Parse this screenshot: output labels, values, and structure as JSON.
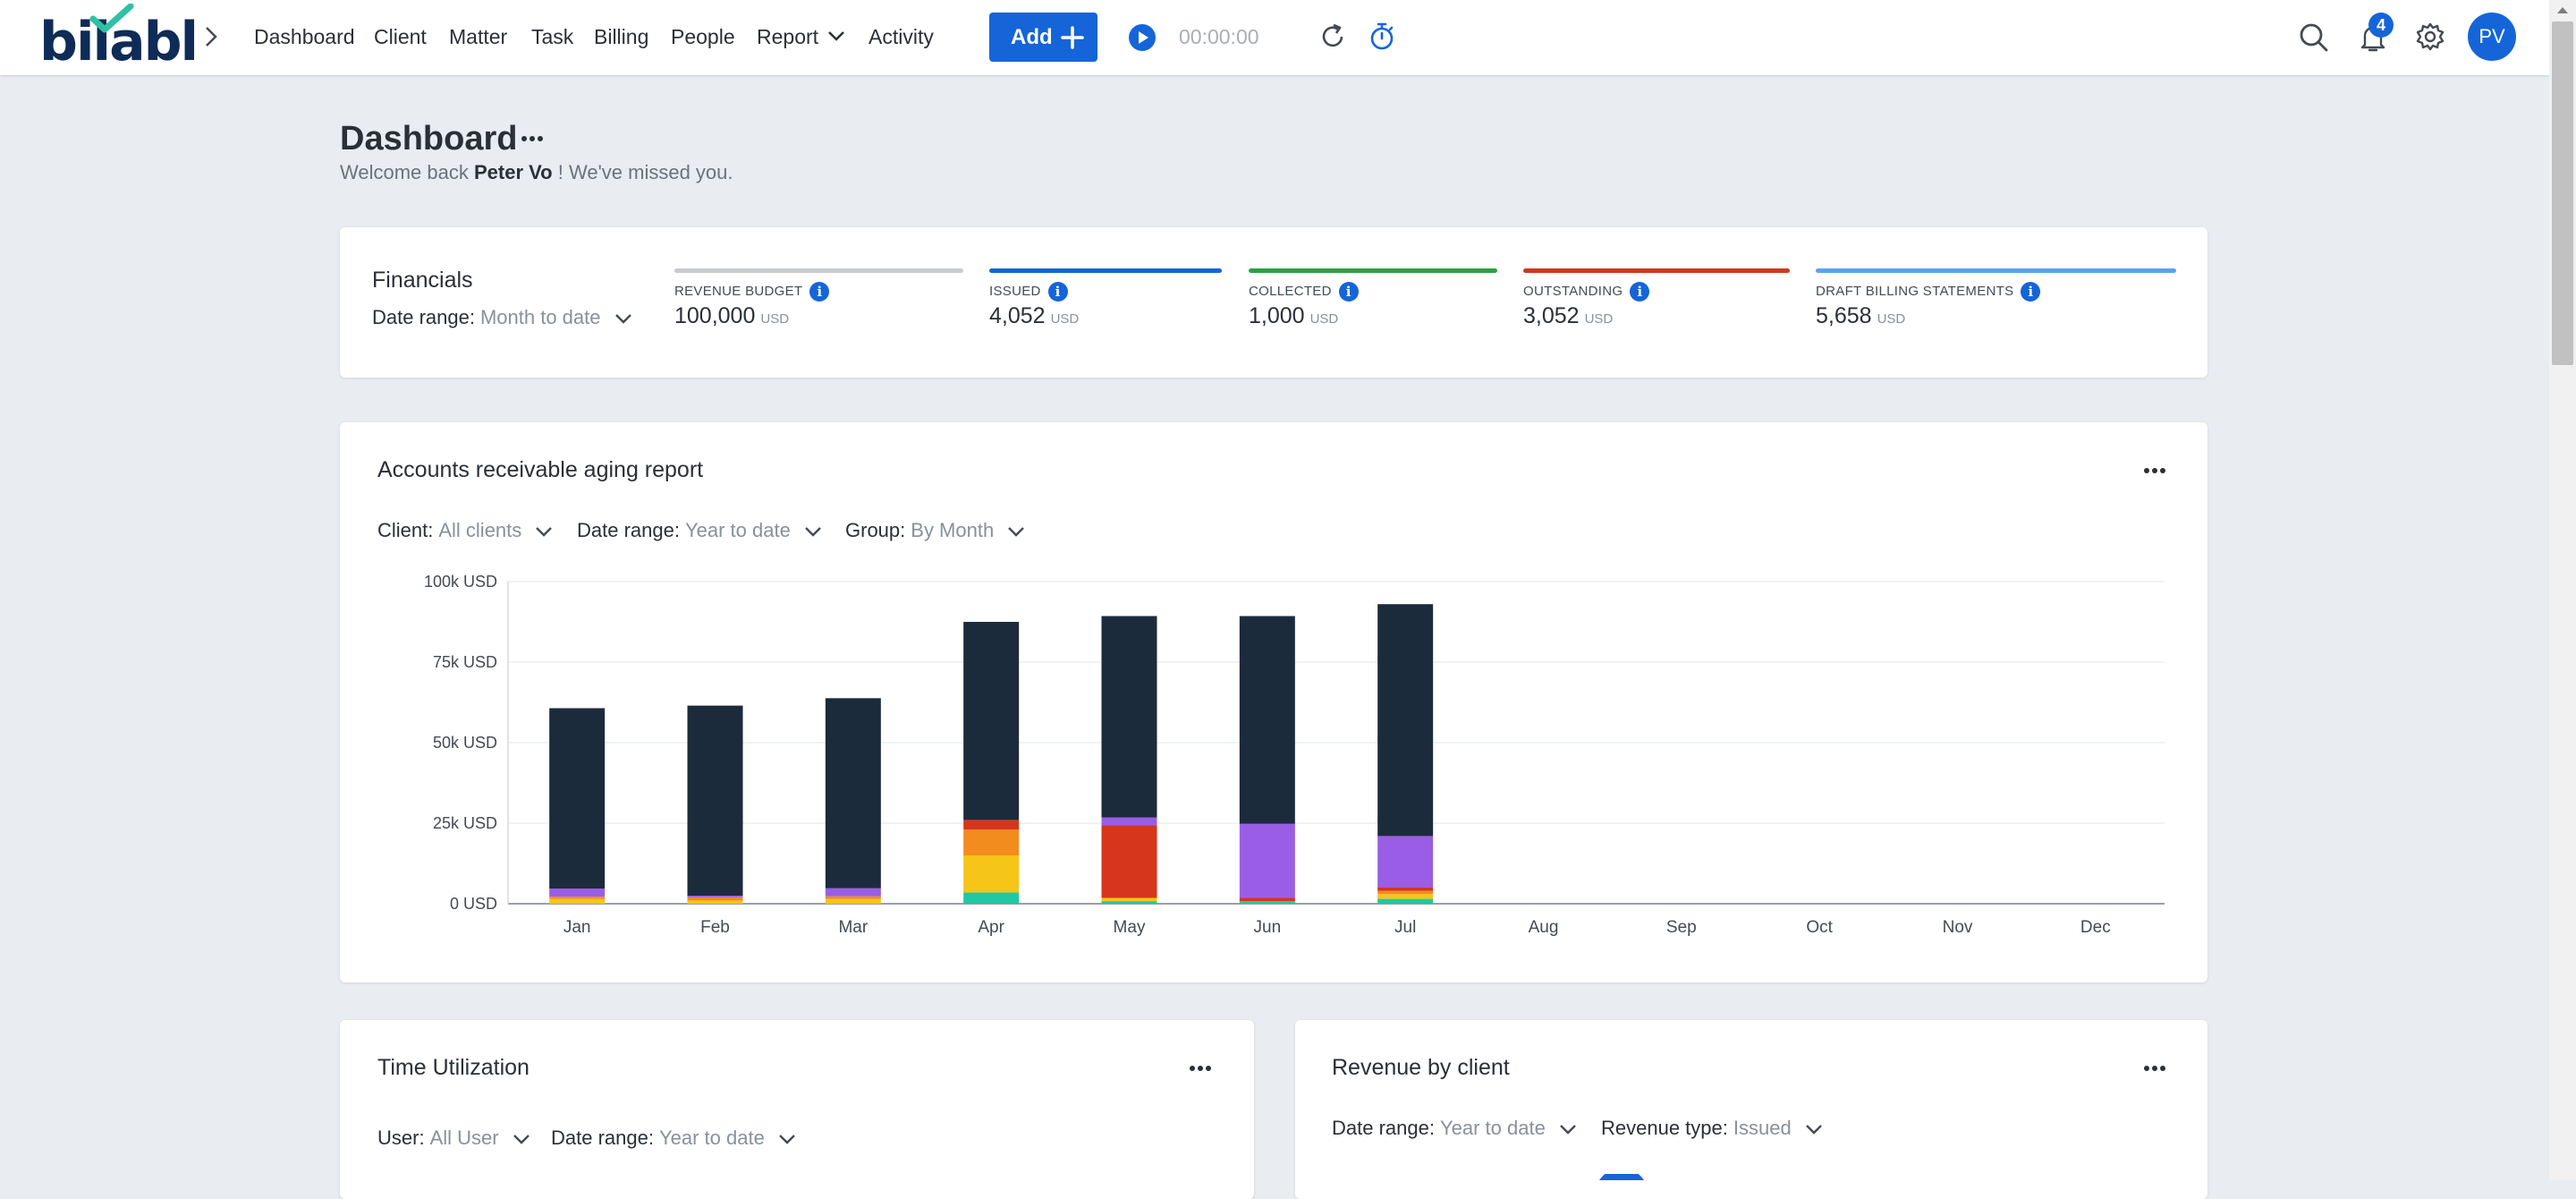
{
  "nav": {
    "logo": "bilabl",
    "items": [
      "Dashboard",
      "Client",
      "Matter",
      "Task",
      "Billing",
      "People",
      "Report",
      "Activity"
    ],
    "add_label": "Add",
    "timer": "00:00:00",
    "notification_count": "4",
    "avatar_initials": "PV"
  },
  "page": {
    "title": "Dashboard",
    "welcome_prefix": "Welcome back",
    "user_name": "Peter Vo",
    "welcome_suffix": "! We've missed you."
  },
  "financials": {
    "title": "Financials",
    "date_range_label": "Date range:",
    "date_range_value": "Month to date",
    "metrics": [
      {
        "label": "REVENUE BUDGET",
        "value": "100,000",
        "currency": "USD",
        "color": "#c9cbcf"
      },
      {
        "label": "ISSUED",
        "value": "4,052",
        "currency": "USD",
        "color": "#1565d8"
      },
      {
        "label": "COLLECTED",
        "value": "1,000",
        "currency": "USD",
        "color": "#2ea043"
      },
      {
        "label": "OUTSTANDING",
        "value": "3,052",
        "currency": "USD",
        "color": "#d3351f"
      },
      {
        "label": "DRAFT BILLING STATEMENTS",
        "value": "5,658",
        "currency": "USD",
        "color": "#5aa2f0"
      }
    ]
  },
  "aging": {
    "title": "Accounts receivable aging report",
    "client_label": "Client:",
    "client_value": "All clients",
    "date_range_label": "Date range:",
    "date_range_value": "Year to date",
    "group_label": "Group:",
    "group_value": "By Month"
  },
  "chart_data": {
    "type": "bar",
    "stacked": true,
    "title": "Accounts receivable aging report",
    "categories": [
      "Jan",
      "Feb",
      "Mar",
      "Apr",
      "May",
      "Jun",
      "Jul",
      "Aug",
      "Sep",
      "Oct",
      "Nov",
      "Dec"
    ],
    "ylim": [
      0,
      100000
    ],
    "yticks": [
      "0 USD",
      "25k USD",
      "50k USD",
      "75k USD",
      "100k USD"
    ],
    "ytick_values": [
      0,
      25000,
      50000,
      75000,
      100000
    ],
    "grid": true,
    "series": [
      {
        "color": "#1fc8a5",
        "values": [
          0,
          0,
          0,
          3500,
          800,
          800,
          1500,
          0,
          0,
          0,
          0,
          0
        ]
      },
      {
        "color": "#f5c518",
        "values": [
          1500,
          1000,
          1500,
          11500,
          1000,
          0,
          1500,
          0,
          0,
          0,
          0,
          0
        ]
      },
      {
        "color": "#f28c1e",
        "values": [
          700,
          1000,
          800,
          8000,
          0,
          0,
          1000,
          0,
          0,
          0,
          0,
          0
        ]
      },
      {
        "color": "#d6361b",
        "values": [
          0,
          0,
          0,
          3000,
          22500,
          1000,
          1000,
          0,
          0,
          0,
          0,
          0
        ]
      },
      {
        "color": "#9a5de6",
        "values": [
          2500,
          500,
          2500,
          0,
          2500,
          23000,
          16000,
          0,
          0,
          0,
          0,
          0
        ]
      },
      {
        "color": "#1c2b3c",
        "values": [
          56000,
          59000,
          59000,
          61500,
          62500,
          64500,
          72000,
          0,
          0,
          0,
          0,
          0
        ]
      }
    ]
  },
  "time_util": {
    "title": "Time Utilization",
    "user_label": "User:",
    "user_value": "All User",
    "date_range_label": "Date range:",
    "date_range_value": "Year to date"
  },
  "revenue_client": {
    "title": "Revenue by client",
    "date_range_label": "Date range:",
    "date_range_value": "Year to date",
    "revenue_type_label": "Revenue type:",
    "revenue_type_value": "Issued"
  }
}
